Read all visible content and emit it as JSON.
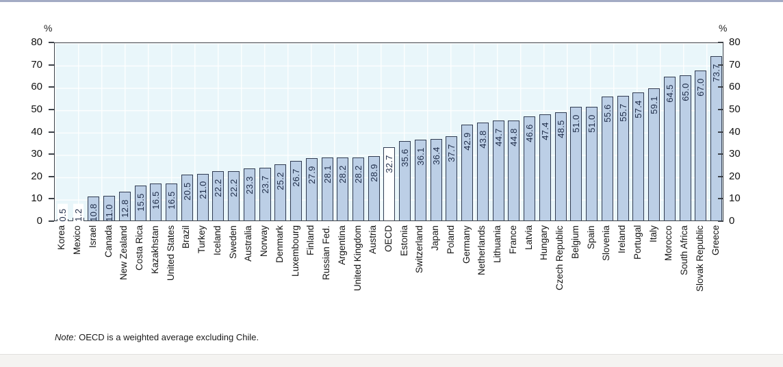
{
  "figure": {
    "note_prefix": "Note:",
    "note_text": "OECD is a weighted average excluding Chile."
  },
  "chart_data": {
    "type": "bar",
    "title": "",
    "unit_left": "%",
    "unit_right": "%",
    "xlabel": "",
    "ylabel": "%",
    "ylim": [
      0,
      80
    ],
    "yticks": [
      0,
      10,
      20,
      30,
      40,
      50,
      60,
      70,
      80
    ],
    "grid": true,
    "legend": "none",
    "highlight_category": "OECD",
    "categories": [
      "Korea",
      "Mexico",
      "Israel",
      "Canada",
      "New Zealand",
      "Costa Rica",
      "Kazakhstan",
      "United States",
      "Brazil",
      "Turkey",
      "Iceland",
      "Sweden",
      "Australia",
      "Norway",
      "Denmark",
      "Luxembourg",
      "Finland",
      "Russian Fed.",
      "Argentina",
      "United Kingdom",
      "Austria",
      "OECD",
      "Estonia",
      "Switzerland",
      "Japan",
      "Poland",
      "Germany",
      "Netherlands",
      "Lithuania",
      "France",
      "Latvia",
      "Hungary",
      "Czech Republic",
      "Belgium",
      "Spain",
      "Slovenia",
      "Ireland",
      "Portugal",
      "Italy",
      "Morocco",
      "South Africa",
      "Slovak Republic",
      "Greece"
    ],
    "values": [
      0.5,
      1.2,
      10.8,
      11.0,
      12.8,
      15.5,
      16.5,
      16.5,
      20.5,
      21.0,
      22.2,
      22.2,
      23.3,
      23.7,
      25.2,
      26.7,
      27.9,
      28.1,
      28.2,
      28.2,
      28.9,
      32.7,
      35.6,
      36.1,
      36.4,
      37.7,
      42.9,
      43.8,
      44.7,
      44.8,
      46.6,
      47.4,
      48.5,
      51.0,
      51.0,
      55.6,
      55.7,
      57.4,
      59.1,
      64.5,
      65.0,
      67.0,
      73.7
    ],
    "value_labels": [
      "0.5",
      "1.2",
      "10.8",
      "11.0",
      "12.8",
      "15.5",
      "16.5",
      "16.5",
      "20.5",
      "21.0",
      "22.2",
      "22.2",
      "23.3",
      "23.7",
      "25.2",
      "26.7",
      "27.9",
      "28.1",
      "28.2",
      "28.2",
      "28.9",
      "32.7",
      "35.6",
      "36.1",
      "36.4",
      "37.7",
      "42.9",
      "43.8",
      "44.7",
      "44.8",
      "46.6",
      "47.4",
      "48.5",
      "51.0",
      "51.0",
      "55.6",
      "55.7",
      "57.4",
      "59.1",
      "64.5",
      "65.0",
      "67.0",
      "73.7"
    ],
    "colors": {
      "bar_fill": "#bccfe6",
      "highlight_fill": "#ffffff",
      "bar_border": "#2f3a50",
      "plot_bg": "#e9f6fa",
      "value_label": "#1d2b47",
      "axis_text": "#111111",
      "frame": "#3c4148"
    }
  }
}
